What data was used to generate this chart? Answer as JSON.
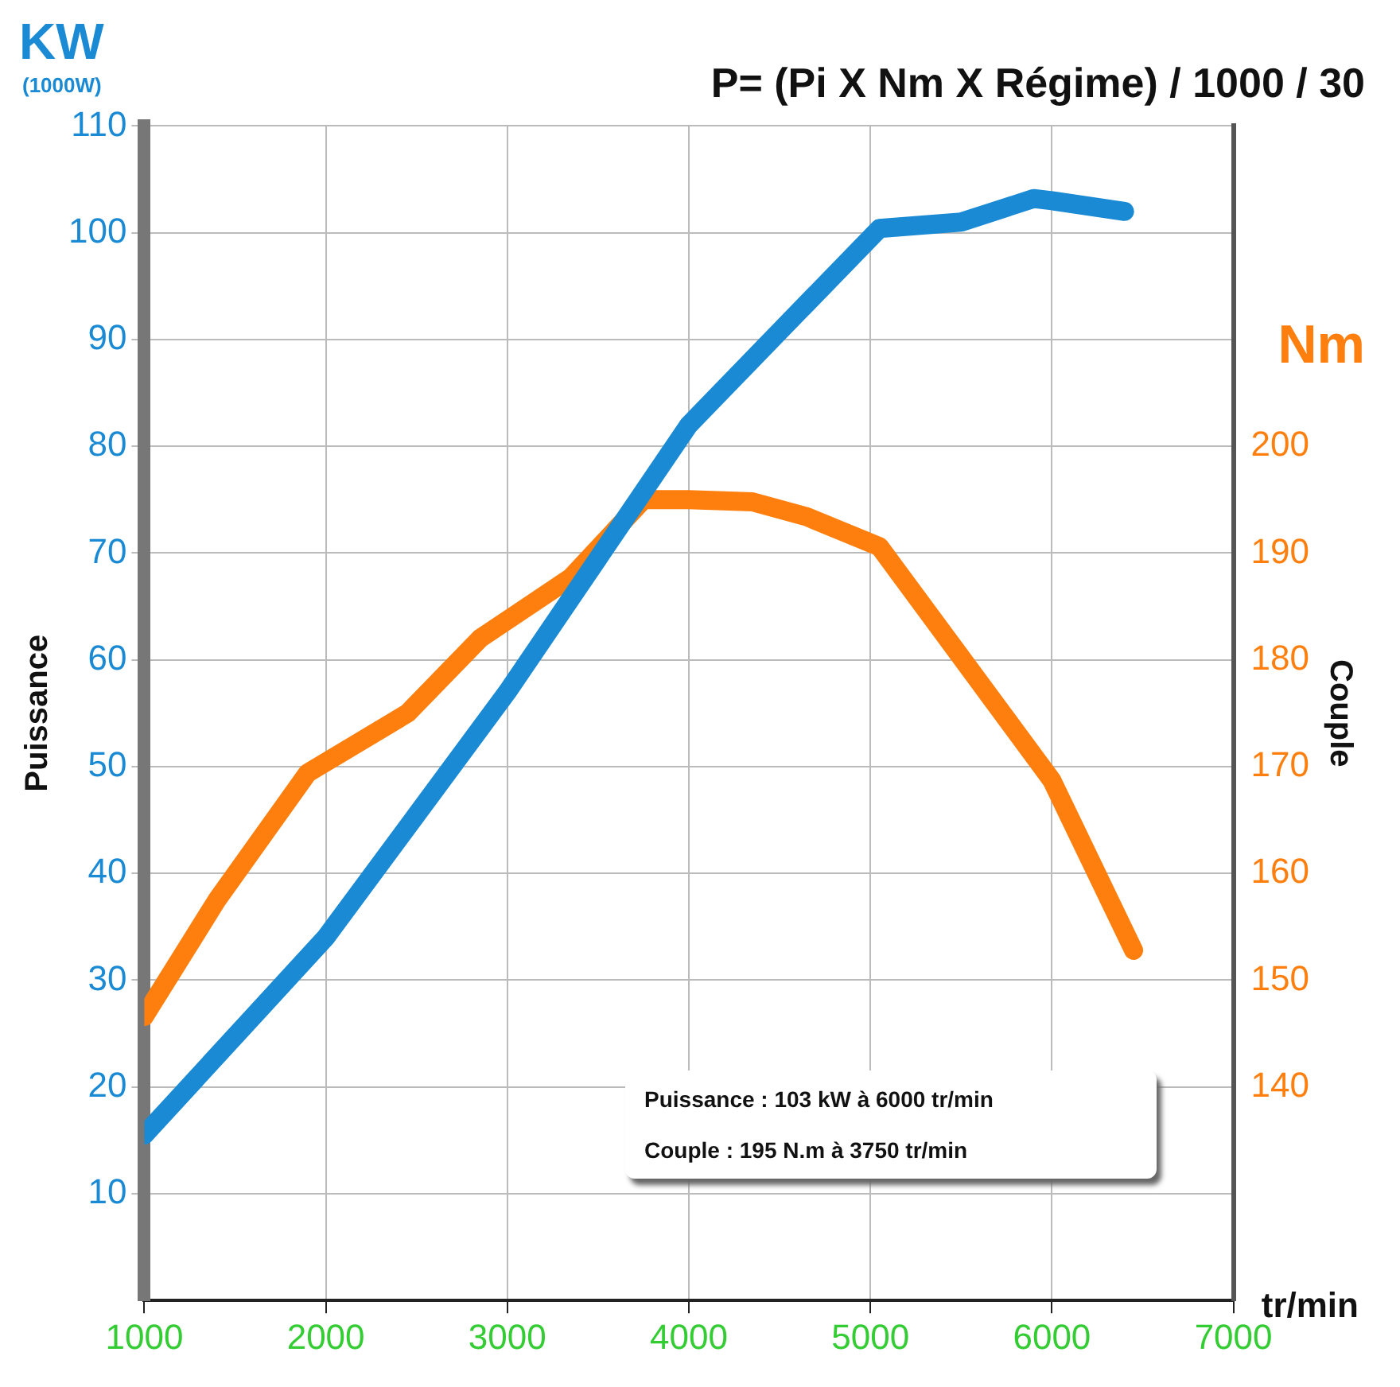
{
  "chart_data": {
    "type": "line",
    "title": "P= (Pi X Nm X Régime) / 1000 / 30",
    "xlabel": "tr/min",
    "ylabel": "Puissance",
    "y2label": "Couple",
    "annotations": [
      "KW",
      "(1000W)",
      "Nm",
      "Puissance : 103 kW à 6000 tr/min",
      "Couple : 195 N.m à 3750 tr/min"
    ],
    "series": [
      {
        "color": "#1a8ad4",
        "x": [
          1000,
          2000,
          3000,
          4000,
          5050,
          5500,
          5900,
          6000,
          6400
        ],
        "values": [
          15.5,
          34,
          57,
          82,
          100.4,
          101,
          103.2,
          103,
          102
        ]
      },
      {
        "color": "#ff7f0e",
        "axis": "y2",
        "x": [
          1000,
          1400,
          1900,
          2450,
          2850,
          3350,
          3750,
          4000,
          4350,
          4650,
          5050,
          6000,
          6450
        ],
        "values": [
          146.6,
          157.5,
          169.4,
          175,
          182,
          187.7,
          195,
          195,
          194.8,
          193.4,
          190.6,
          168.7,
          152.8
        ]
      }
    ],
    "xlim": [
      1000,
      7000
    ],
    "xticks": [
      1000,
      2000,
      3000,
      4000,
      5000,
      6000,
      7000
    ],
    "ylim": [
      0,
      110
    ],
    "yticks": [
      10,
      20,
      30,
      40,
      50,
      60,
      70,
      80,
      90,
      100,
      110
    ],
    "y2lim": [
      120,
      230
    ],
    "y2ticks": [
      140,
      150,
      160,
      170,
      180,
      190,
      200
    ],
    "grid": true,
    "legend": false,
    "marker": "none",
    "line_style": "solid"
  }
}
